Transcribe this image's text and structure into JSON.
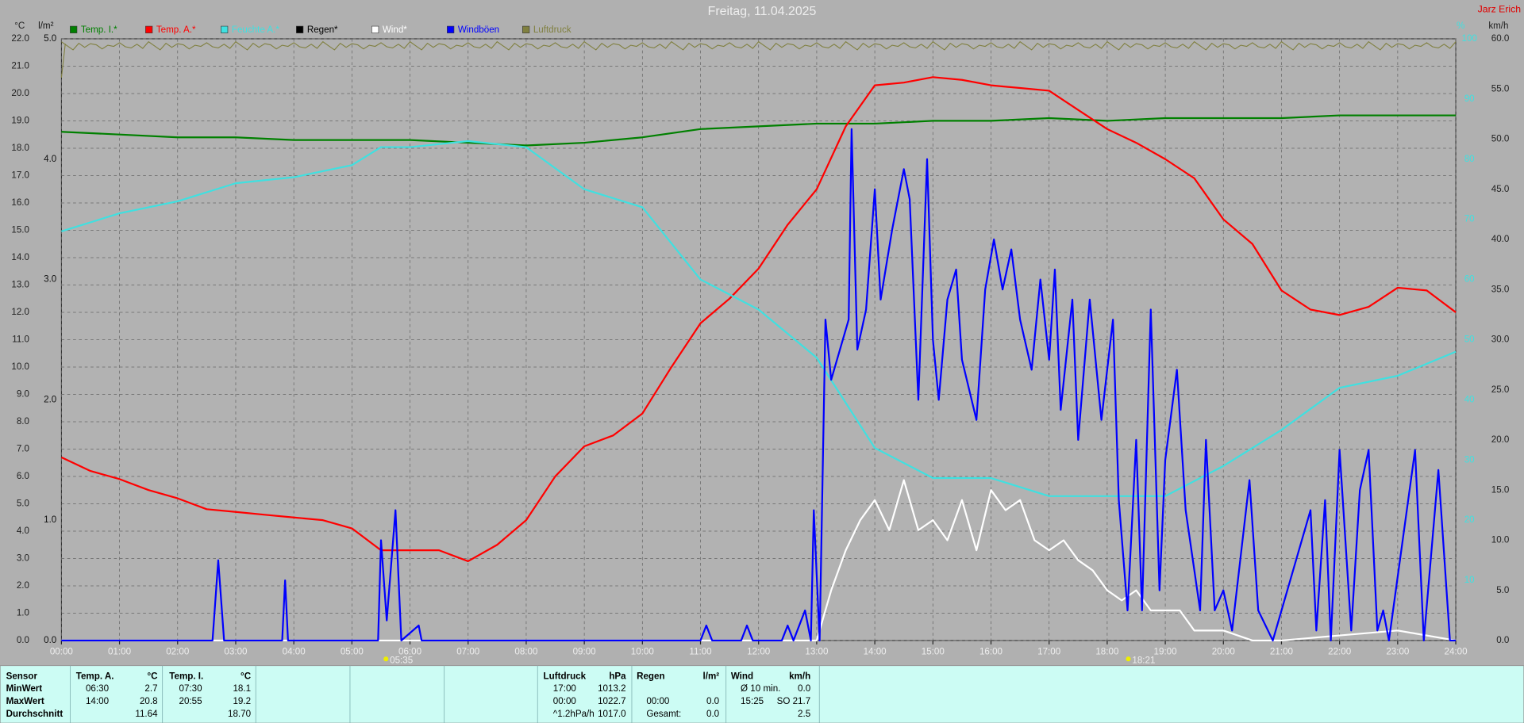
{
  "header": {
    "author": "Jarz Erich"
  },
  "chart_data": {
    "type": "line",
    "title": "Freitag, 11.04.2025",
    "units": {
      "y": "°C",
      "y3": "l/m²",
      "y4": "%",
      "y2": "km/h"
    },
    "xlim": [
      0,
      24
    ],
    "xticks": [
      {
        "value": 0,
        "label": "00:00"
      },
      {
        "value": 1,
        "label": "01:00"
      },
      {
        "value": 2,
        "label": "02:00"
      },
      {
        "value": 3,
        "label": "03:00"
      },
      {
        "value": 4,
        "label": "04:00"
      },
      {
        "value": 5,
        "label": "05:00"
      },
      {
        "value": 6,
        "label": "06:00"
      },
      {
        "value": 7,
        "label": "07:00"
      },
      {
        "value": 8,
        "label": "08:00"
      },
      {
        "value": 9,
        "label": "09:00"
      },
      {
        "value": 10,
        "label": "10:00"
      },
      {
        "value": 11,
        "label": "11:00"
      },
      {
        "value": 12,
        "label": "12:00"
      },
      {
        "value": 13,
        "label": "13:00"
      },
      {
        "value": 14,
        "label": "14:00"
      },
      {
        "value": 15,
        "label": "15:00"
      },
      {
        "value": 16,
        "label": "16:00"
      },
      {
        "value": 17,
        "label": "17:00"
      },
      {
        "value": 18,
        "label": "18:00"
      },
      {
        "value": 19,
        "label": "19:00"
      },
      {
        "value": 20,
        "label": "20:00"
      },
      {
        "value": 21,
        "label": "21:00"
      },
      {
        "value": 22,
        "label": "22:00"
      },
      {
        "value": 23,
        "label": "23:00"
      },
      {
        "value": 24,
        "label": "24:00"
      }
    ],
    "ylim": [
      0,
      22
    ],
    "yticks": [
      {
        "value": 0,
        "label": "0.0"
      },
      {
        "value": 1,
        "label": "1.0"
      },
      {
        "value": 2,
        "label": "2.0"
      },
      {
        "value": 3,
        "label": "3.0"
      },
      {
        "value": 4,
        "label": "4.0"
      },
      {
        "value": 5,
        "label": "5.0"
      },
      {
        "value": 6,
        "label": "6.0"
      },
      {
        "value": 7,
        "label": "7.0"
      },
      {
        "value": 8,
        "label": "8.0"
      },
      {
        "value": 9,
        "label": "9.0"
      },
      {
        "value": 10,
        "label": "10.0"
      },
      {
        "value": 11,
        "label": "11.0"
      },
      {
        "value": 12,
        "label": "12.0"
      },
      {
        "value": 13,
        "label": "13.0"
      },
      {
        "value": 14,
        "label": "14.0"
      },
      {
        "value": 15,
        "label": "15.0"
      },
      {
        "value": 16,
        "label": "16.0"
      },
      {
        "value": 17,
        "label": "17.0"
      },
      {
        "value": 18,
        "label": "18.0"
      },
      {
        "value": 19,
        "label": "19.0"
      },
      {
        "value": 20,
        "label": "20.0"
      },
      {
        "value": 21,
        "label": "21.0"
      },
      {
        "value": 22,
        "label": "22.0"
      }
    ],
    "y3lim": [
      0,
      5
    ],
    "y3ticks": [
      {
        "value": 0,
        "label": "0.0"
      },
      {
        "value": 1,
        "label": "1.0"
      },
      {
        "value": 2,
        "label": "2.0"
      },
      {
        "value": 3,
        "label": "3.0"
      },
      {
        "value": 4,
        "label": "4.0"
      },
      {
        "value": 5,
        "label": "5.0"
      }
    ],
    "y4lim": [
      0,
      100
    ],
    "y4ticks": [
      10,
      20,
      30,
      40,
      50,
      60,
      70,
      80,
      90,
      100
    ],
    "y2lim": [
      0,
      60
    ],
    "y2ticks": [
      {
        "value": 0,
        "label": "0.0"
      },
      {
        "value": 5,
        "label": "5.0"
      },
      {
        "value": 10,
        "label": "10.0"
      },
      {
        "value": 15,
        "label": "15.0"
      },
      {
        "value": 20,
        "label": "20.0"
      },
      {
        "value": 25,
        "label": "25.0"
      },
      {
        "value": 30,
        "label": "30.0"
      },
      {
        "value": 35,
        "label": "35.0"
      },
      {
        "value": 40,
        "label": "40.0"
      },
      {
        "value": 45,
        "label": "45.0"
      },
      {
        "value": 50,
        "label": "50.0"
      },
      {
        "value": 55,
        "label": "55.0"
      },
      {
        "value": 60,
        "label": "60.0"
      }
    ],
    "grid": true,
    "series": [
      {
        "name": "Temp. I.*",
        "color": "#008000",
        "axis": "y",
        "x": [
          0,
          1,
          2,
          3,
          4,
          5,
          6,
          7,
          8,
          9,
          10,
          11,
          12,
          13,
          14,
          15,
          16,
          17,
          18,
          19,
          20,
          21,
          22,
          23,
          24
        ],
        "values": [
          18.6,
          18.5,
          18.4,
          18.4,
          18.3,
          18.3,
          18.3,
          18.2,
          18.1,
          18.2,
          18.4,
          18.7,
          18.8,
          18.9,
          18.9,
          19.0,
          19.0,
          19.1,
          19.0,
          19.1,
          19.1,
          19.1,
          19.2,
          19.2,
          19.2
        ]
      },
      {
        "name": "Temp. A.*",
        "color": "#ff0000",
        "axis": "y",
        "x": [
          0,
          0.5,
          1,
          1.5,
          2,
          2.5,
          3,
          3.5,
          4,
          4.5,
          5,
          5.5,
          6,
          6.5,
          7,
          7.5,
          8,
          8.5,
          9,
          9.5,
          10,
          10.5,
          11,
          11.5,
          12,
          12.5,
          13,
          13.5,
          14,
          14.5,
          15,
          15.5,
          16,
          16.5,
          17,
          17.5,
          18,
          18.5,
          19,
          19.5,
          20,
          20.5,
          21,
          21.5,
          22,
          22.5,
          23,
          23.5,
          24
        ],
        "values": [
          6.7,
          6.2,
          5.9,
          5.5,
          5.2,
          4.8,
          4.7,
          4.6,
          4.5,
          4.4,
          4.1,
          3.3,
          3.3,
          3.3,
          2.9,
          3.5,
          4.4,
          6.0,
          7.1,
          7.5,
          8.3,
          10.0,
          11.6,
          12.5,
          13.6,
          15.2,
          16.5,
          18.8,
          20.3,
          20.4,
          20.6,
          20.5,
          20.3,
          20.2,
          20.1,
          19.4,
          18.7,
          18.2,
          17.6,
          16.9,
          15.4,
          14.5,
          12.8,
          12.1,
          11.9,
          12.2,
          12.9,
          12.8,
          12.0
        ]
      },
      {
        "name": "Feuchte A.*",
        "color": "#40e0e0",
        "axis": "y4",
        "x": [
          0,
          1,
          2,
          3,
          4,
          5,
          5.5,
          6,
          7,
          8,
          9,
          10,
          11,
          12,
          13,
          14,
          15,
          16,
          17,
          18,
          19,
          20,
          21,
          22,
          23,
          24
        ],
        "values": [
          68,
          71,
          73,
          76,
          77,
          79,
          82,
          82,
          83,
          82,
          75,
          72,
          60,
          55,
          47,
          32,
          27,
          27,
          24,
          24,
          24,
          29,
          35,
          42,
          44,
          48
        ]
      },
      {
        "name": "Regen*",
        "color": "#000000",
        "axis": "y3",
        "x": [],
        "values": []
      },
      {
        "name": "Wind*",
        "color": "#ffffff",
        "axis": "y2",
        "x": [
          0,
          13,
          13.25,
          13.5,
          13.75,
          14,
          14.25,
          14.5,
          14.75,
          15,
          15.25,
          15.5,
          15.75,
          16,
          16.25,
          16.5,
          16.75,
          17,
          17.25,
          17.5,
          17.75,
          18,
          18.25,
          18.5,
          18.75,
          19,
          19.25,
          19.5,
          20,
          20.5,
          21,
          22,
          23,
          24
        ],
        "values": [
          0,
          0,
          5,
          9,
          12,
          14,
          11,
          16,
          11,
          12,
          10,
          14,
          9,
          15,
          13,
          14,
          10,
          9,
          10,
          8,
          7,
          5,
          4,
          5,
          3,
          3,
          3,
          1,
          1,
          0,
          0,
          0.5,
          1,
          0
        ]
      },
      {
        "name": "Windböen",
        "color": "#0000ff",
        "axis": "y2",
        "x": [
          0,
          2.6,
          2.7,
          2.8,
          3.8,
          3.85,
          3.9,
          5.45,
          5.5,
          5.6,
          5.75,
          5.85,
          6.15,
          6.2,
          11,
          11.1,
          11.2,
          11.7,
          11.8,
          11.9,
          12.4,
          12.5,
          12.6,
          12.8,
          12.9,
          12.95,
          13.05,
          13.15,
          13.25,
          13.4,
          13.55,
          13.6,
          13.7,
          13.85,
          14,
          14.1,
          14.3,
          14.5,
          14.6,
          14.75,
          14.9,
          15,
          15.1,
          15.25,
          15.4,
          15.5,
          15.75,
          15.9,
          16.05,
          16.2,
          16.35,
          16.5,
          16.7,
          16.85,
          17,
          17.1,
          17.2,
          17.4,
          17.5,
          17.7,
          17.9,
          18.1,
          18.2,
          18.35,
          18.5,
          18.6,
          18.75,
          18.9,
          19,
          19.2,
          19.35,
          19.6,
          19.7,
          19.85,
          20,
          20.15,
          20.45,
          20.6,
          20.85,
          21.5,
          21.6,
          21.75,
          21.85,
          22,
          22.2,
          22.35,
          22.5,
          22.65,
          22.75,
          22.85,
          23.3,
          23.45,
          23.7,
          23.9,
          24
        ],
        "values": [
          0,
          0,
          8,
          0,
          0,
          6,
          0,
          0,
          10,
          2,
          13,
          0,
          1.5,
          0,
          0,
          1.5,
          0,
          0,
          1.5,
          0,
          0,
          1.5,
          0,
          3,
          0,
          13,
          0,
          32,
          26,
          29,
          32,
          51,
          29,
          33,
          45,
          34,
          41,
          47,
          44,
          24,
          48,
          30,
          24,
          34,
          37,
          28,
          22,
          35,
          40,
          35,
          39,
          32,
          27,
          36,
          28,
          37,
          23,
          34,
          20,
          34,
          22,
          32,
          14,
          3,
          20,
          3,
          33,
          5,
          18,
          27,
          13,
          3,
          20,
          3,
          5,
          1,
          16,
          3,
          0,
          13,
          1,
          14,
          0,
          19,
          1,
          15,
          19,
          1,
          3,
          0,
          19,
          0,
          17,
          0,
          0
        ]
      },
      {
        "name": "Luftdruck",
        "color": "#808040",
        "axis": "none",
        "x": [],
        "values": []
      }
    ],
    "sun": {
      "sunrise": "05:35",
      "sunset": "18:21"
    }
  },
  "stats": {
    "header": [
      "Sensor",
      "Temp. A.",
      "°C",
      "Temp. I.",
      "°C",
      "Luftdruck",
      "hPa",
      "Regen",
      "l/m²",
      "Wind",
      "km/h"
    ],
    "rows": [
      [
        "MinWert",
        "06:30",
        "2.7",
        "07:30",
        "18.1",
        "17:00",
        "1013.2",
        null,
        null,
        "Ø 10 min.",
        "0.0"
      ],
      [
        "MaxWert",
        "14:00",
        "20.8",
        "20:55",
        "19.2",
        "00:00",
        "1022.7",
        "00:00",
        "0.0",
        "15:25",
        "SO 21.7"
      ],
      [
        "Durchschnitt",
        null,
        "11.64",
        null,
        "18.70",
        "^1.2hPa/h",
        "1017.0",
        "Gesamt:",
        "0.0",
        null,
        "2.5"
      ]
    ]
  }
}
